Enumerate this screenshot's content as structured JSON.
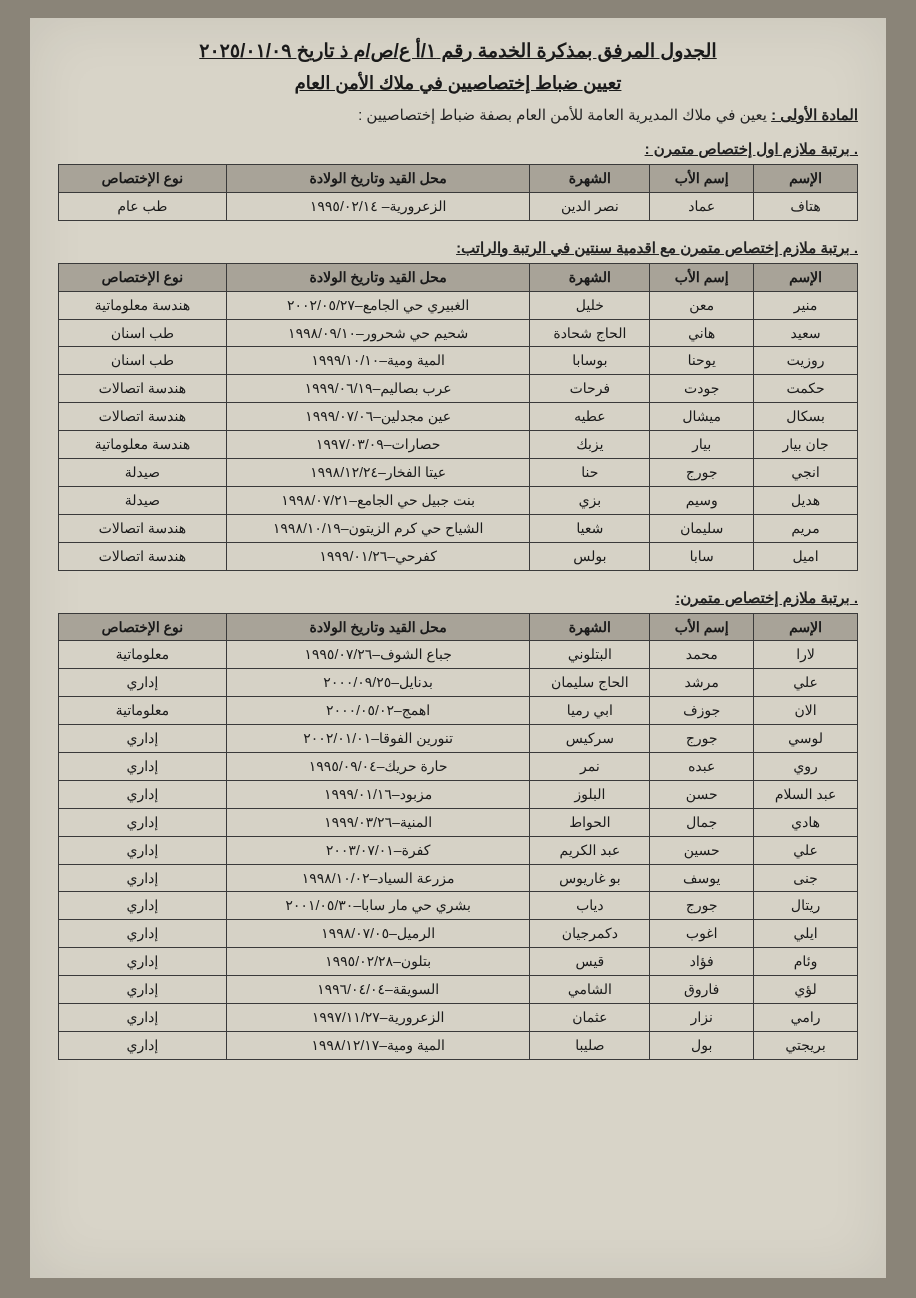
{
  "header": {
    "title": "الجدول المرفق بمذكرة الخدمة رقم ١/أ ع/ص/م ذ  تاريخ ٢٠٢٥/٠١/٠٩",
    "subtitle": "تعيين ضباط إختصاصيين في ملاك الأمن العام",
    "article_lead": "المادة الأولى :",
    "article_text": " يعين في ملاك المديرية العامة للأمن العام بصفة ضباط إختصاصيين :"
  },
  "columns": {
    "name": "الإسم",
    "father": "إسم الأب",
    "last": "الشهرة",
    "place": "محل القيد وتاريخ الولادة",
    "spec": "نوع الإختصاص"
  },
  "sections": [
    {
      "rank": "برتبة ملازم اول إختصاص متمرن :",
      "rows": [
        [
          "هتاف",
          "عماد",
          "نصر الدين",
          "الزعرورية– ١٩٩٥/٠٢/١٤",
          "طب عام"
        ]
      ]
    },
    {
      "rank": "برتبة ملازم إختصاص متمرن مع اقدمية سنتين في الرتبة والراتب:",
      "rows": [
        [
          "منير",
          "معن",
          "خليل",
          "الغبيري حي الجامع–٢٠٠٢/٠٥/٢٧",
          "هندسة معلوماتية"
        ],
        [
          "سعيد",
          "هاني",
          "الحاج شحادة",
          "شحيم حي شحرور–١٩٩٨/٠٩/١٠",
          "طب اسنان"
        ],
        [
          "روزيت",
          "يوحنا",
          "بوسابا",
          "المية ومية–١٩٩٩/١٠/١٠",
          "طب اسنان"
        ],
        [
          "حكمت",
          "جودت",
          "فرحات",
          "عرب بصاليم–١٩٩٩/٠٦/١٩",
          "هندسة اتصالات"
        ],
        [
          "بسكال",
          "ميشال",
          "عطيه",
          "عين مجدلين–١٩٩٩/٠٧/٠٦",
          "هندسة اتصالات"
        ],
        [
          "جان بيار",
          "بيار",
          "يزبك",
          "حصارات–١٩٩٧/٠٣/٠٩",
          "هندسة معلوماتية"
        ],
        [
          "انجي",
          "جورج",
          "حنا",
          "عيتا الفخار–١٩٩٨/١٢/٢٤",
          "صيدلة"
        ],
        [
          "هديل",
          "وسيم",
          "بزي",
          "بنت جبيل حي الجامع–١٩٩٨/٠٧/٢١",
          "صيدلة"
        ],
        [
          "مريم",
          "سليمان",
          "شعيا",
          "الشياح حي كرم الزيتون–١٩٩٨/١٠/١٩",
          "هندسة اتصالات"
        ],
        [
          "اميل",
          "سابا",
          "بولس",
          "كفرحي–١٩٩٩/٠١/٢٦",
          "هندسة اتصالات"
        ]
      ]
    },
    {
      "rank": "برتبة ملازم إختصاص متمرن:",
      "rows": [
        [
          "لارا",
          "محمد",
          "البتلوني",
          "جباع الشوف–١٩٩٥/٠٧/٢٦",
          "معلوماتية"
        ],
        [
          "علي",
          "مرشد",
          "الحاج سليمان",
          "بدنايل–٢٠٠٠/٠٩/٢٥",
          "إداري"
        ],
        [
          "الان",
          "جوزف",
          "ابي رميا",
          "اهمج–٢٠٠٠/٠٥/٠٢",
          "معلوماتية"
        ],
        [
          "لوسي",
          "جورج",
          "سركيس",
          "تنورين الفوقا–٢٠٠٢/٠١/٠١",
          "إداري"
        ],
        [
          "روي",
          "عبده",
          "نمر",
          "حارة حريك–١٩٩٥/٠٩/٠٤",
          "إداري"
        ],
        [
          "عبد السلام",
          "حسن",
          "البلوز",
          "مزبود–١٩٩٩/٠١/١٦",
          "إداري"
        ],
        [
          "هادي",
          "جمال",
          "الحواط",
          "المنية–١٩٩٩/٠٣/٢٦",
          "إداري"
        ],
        [
          "علي",
          "حسين",
          "عبد الكريم",
          "كفرة–٢٠٠٣/٠٧/٠١",
          "إداري"
        ],
        [
          "جنى",
          "يوسف",
          "بو غاريوس",
          "مزرعة السياد–١٩٩٨/١٠/٠٢",
          "إداري"
        ],
        [
          "ريتال",
          "جورج",
          "دياب",
          "بشري حي مار سابا–٢٠٠١/٠٥/٣٠",
          "إداري"
        ],
        [
          "ايلي",
          "اغوب",
          "دكمرجيان",
          "الرميل–١٩٩٨/٠٧/٠٥",
          "إداري"
        ],
        [
          "وئام",
          "فؤاد",
          "قيس",
          "بتلون–١٩٩٥/٠٢/٢٨",
          "إداري"
        ],
        [
          "لؤي",
          "فاروق",
          "الشامي",
          "السويقة–١٩٩٦/٠٤/٠٤",
          "إداري"
        ],
        [
          "رامي",
          "نزار",
          "عثمان",
          "الزعرورية–١٩٩٧/١١/٢٧",
          "إداري"
        ],
        [
          "بريجتي",
          "بول",
          "صليبا",
          "المية ومية–١٩٩٨/١٢/١٧",
          "إداري"
        ]
      ]
    }
  ]
}
